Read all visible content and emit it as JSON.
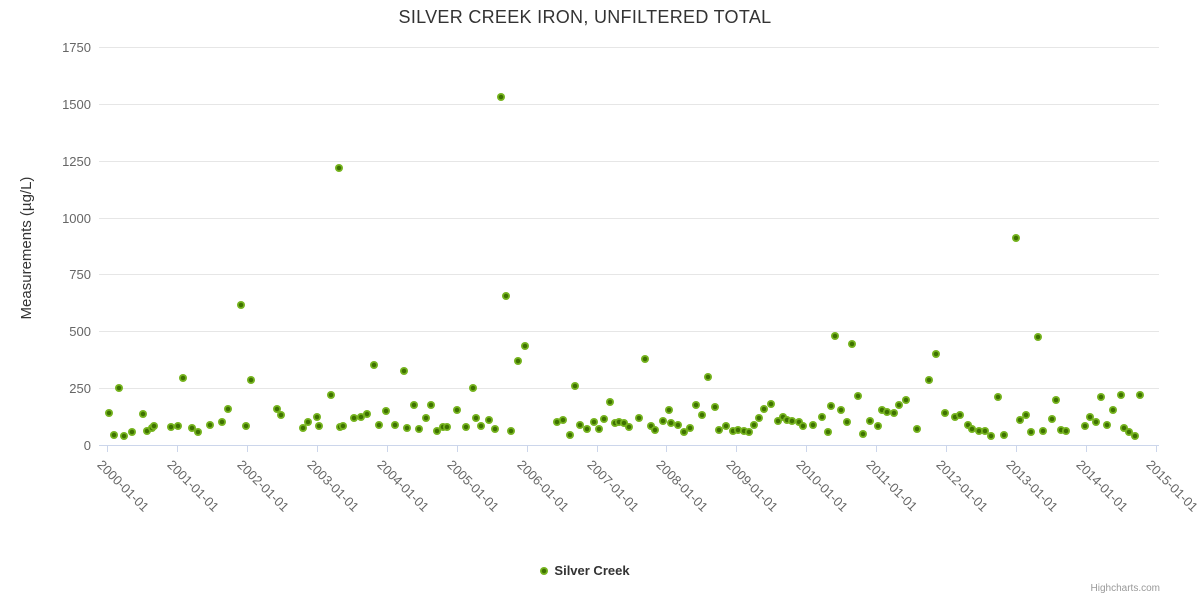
{
  "title": "SILVER CREEK IRON, UNFILTERED TOTAL",
  "y_axis": {
    "title": "Measurements (µg/L)",
    "tick_labels": [
      "0",
      "250",
      "500",
      "750",
      "1000",
      "1250",
      "1500",
      "1750"
    ]
  },
  "x_axis": {
    "tick_labels": [
      "2000-01-01",
      "2001-01-01",
      "2002-01-01",
      "2003-01-01",
      "2004-01-01",
      "2005-01-01",
      "2006-01-01",
      "2007-01-01",
      "2008-01-01",
      "2009-01-01",
      "2010-01-01",
      "2011-01-01",
      "2012-01-01",
      "2013-01-01",
      "2014-01-01",
      "2015-01-01"
    ]
  },
  "legend": {
    "label": "Silver Creek"
  },
  "credits": "Highcharts.com",
  "colors": {
    "marker_outer": "#76b41f",
    "marker_inner": "#3e7200",
    "grid": "#e6e6e6",
    "axis_line": "#ccd6eb",
    "title_text": "#333333",
    "label_text": "#666666",
    "credits_text": "#999999"
  },
  "chart_data": {
    "type": "scatter",
    "title": "SILVER CREEK IRON, UNFILTERED TOTAL",
    "xlabel": "",
    "ylabel": "Measurements (µg/L)",
    "ylim": [
      0,
      1750
    ],
    "y_ticks": [
      0,
      250,
      500,
      750,
      1000,
      1250,
      1500,
      1750
    ],
    "xlim": [
      "2000-01-01",
      "2015-01-01"
    ],
    "grid": true,
    "legend_position": "bottom-center",
    "series": [
      {
        "name": "Silver Creek",
        "color": "#76b41f",
        "points": [
          [
            "2000-01-11",
            140
          ],
          [
            "2000-02-07",
            45
          ],
          [
            "2000-03-05",
            250
          ],
          [
            "2000-03-27",
            40
          ],
          [
            "2000-05-10",
            55
          ],
          [
            "2000-07-04",
            135
          ],
          [
            "2000-07-26",
            60
          ],
          [
            "2000-08-25",
            75
          ],
          [
            "2000-09-05",
            85
          ],
          [
            "2000-12-02",
            80
          ],
          [
            "2001-01-04",
            85
          ],
          [
            "2001-02-03",
            295
          ],
          [
            "2001-03-20",
            75
          ],
          [
            "2001-04-22",
            55
          ],
          [
            "2001-06-23",
            90
          ],
          [
            "2001-08-25",
            100
          ],
          [
            "2001-09-23",
            160
          ],
          [
            "2001-12-02",
            615
          ],
          [
            "2001-12-27",
            85
          ],
          [
            "2002-01-22",
            285
          ],
          [
            "2002-06-05",
            160
          ],
          [
            "2002-06-27",
            130
          ],
          [
            "2002-10-22",
            75
          ],
          [
            "2002-11-17",
            100
          ],
          [
            "2003-01-01",
            125
          ],
          [
            "2003-01-11",
            85
          ],
          [
            "2003-03-16",
            220
          ],
          [
            "2003-04-26",
            1220
          ],
          [
            "2003-05-03",
            80
          ],
          [
            "2003-05-17",
            85
          ],
          [
            "2003-07-15",
            120
          ],
          [
            "2003-08-21",
            125
          ],
          [
            "2003-09-20",
            135
          ],
          [
            "2003-10-26",
            350
          ],
          [
            "2003-11-21",
            90
          ],
          [
            "2003-12-27",
            150
          ],
          [
            "2004-02-14",
            90
          ],
          [
            "2004-04-01",
            325
          ],
          [
            "2004-04-15",
            75
          ],
          [
            "2004-05-21",
            175
          ],
          [
            "2004-06-16",
            70
          ],
          [
            "2004-07-22",
            120
          ],
          [
            "2004-08-17",
            175
          ],
          [
            "2004-09-20",
            60
          ],
          [
            "2004-10-19",
            80
          ],
          [
            "2004-11-14",
            80
          ],
          [
            "2005-01-01",
            155
          ],
          [
            "2005-02-17",
            80
          ],
          [
            "2005-03-23",
            250
          ],
          [
            "2005-04-11",
            120
          ],
          [
            "2005-05-07",
            85
          ],
          [
            "2005-06-20",
            110
          ],
          [
            "2005-07-19",
            70
          ],
          [
            "2005-08-17",
            1530
          ],
          [
            "2005-09-16",
            655
          ],
          [
            "2005-10-11",
            60
          ],
          [
            "2005-11-17",
            370
          ],
          [
            "2005-12-23",
            435
          ],
          [
            "2006-06-05",
            100
          ],
          [
            "2006-07-11",
            110
          ],
          [
            "2006-08-14",
            45
          ],
          [
            "2006-09-09",
            260
          ],
          [
            "2006-10-04",
            90
          ],
          [
            "2006-11-10",
            70
          ],
          [
            "2006-12-16",
            100
          ],
          [
            "2007-01-15",
            70
          ],
          [
            "2007-02-07",
            115
          ],
          [
            "2007-03-13",
            190
          ],
          [
            "2007-04-08",
            95
          ],
          [
            "2007-04-29",
            100
          ],
          [
            "2007-05-25",
            95
          ],
          [
            "2007-06-20",
            80
          ],
          [
            "2007-08-10",
            120
          ],
          [
            "2007-09-13",
            380
          ],
          [
            "2007-10-11",
            85
          ],
          [
            "2007-11-03",
            65
          ],
          [
            "2007-12-13",
            105
          ],
          [
            "2008-01-15",
            155
          ],
          [
            "2008-01-26",
            95
          ],
          [
            "2008-03-02",
            90
          ],
          [
            "2008-04-01",
            55
          ],
          [
            "2008-05-03",
            75
          ],
          [
            "2008-06-02",
            175
          ],
          [
            "2008-07-04",
            130
          ],
          [
            "2008-08-03",
            300
          ],
          [
            "2008-09-09",
            165
          ],
          [
            "2008-10-01",
            65
          ],
          [
            "2008-11-07",
            85
          ],
          [
            "2008-12-13",
            60
          ],
          [
            "2009-01-08",
            65
          ],
          [
            "2009-02-11",
            60
          ],
          [
            "2009-03-05",
            55
          ],
          [
            "2009-04-04",
            90
          ],
          [
            "2009-04-29",
            120
          ],
          [
            "2009-05-25",
            160
          ],
          [
            "2009-07-01",
            180
          ],
          [
            "2009-08-03",
            105
          ],
          [
            "2009-09-02",
            125
          ],
          [
            "2009-09-23",
            110
          ],
          [
            "2009-10-19",
            105
          ],
          [
            "2009-11-21",
            100
          ],
          [
            "2009-12-16",
            85
          ],
          [
            "2010-02-03",
            90
          ],
          [
            "2010-03-23",
            125
          ],
          [
            "2010-04-22",
            55
          ],
          [
            "2010-05-10",
            170
          ],
          [
            "2010-05-28",
            480
          ],
          [
            "2010-07-01",
            155
          ],
          [
            "2010-07-29",
            100
          ],
          [
            "2010-08-25",
            445
          ],
          [
            "2010-09-27",
            215
          ],
          [
            "2010-10-22",
            50
          ],
          [
            "2010-11-28",
            105
          ],
          [
            "2011-01-08",
            85
          ],
          [
            "2011-01-29",
            155
          ],
          [
            "2011-02-25",
            145
          ],
          [
            "2011-04-01",
            140
          ],
          [
            "2011-04-26",
            175
          ],
          [
            "2011-06-02",
            200
          ],
          [
            "2011-08-03",
            70
          ],
          [
            "2011-10-01",
            285
          ],
          [
            "2011-11-07",
            400
          ],
          [
            "2011-12-27",
            140
          ],
          [
            "2012-02-14",
            125
          ],
          [
            "2012-03-13",
            130
          ],
          [
            "2012-04-22",
            90
          ],
          [
            "2012-05-14",
            70
          ],
          [
            "2012-06-20",
            60
          ],
          [
            "2012-07-22",
            60
          ],
          [
            "2012-08-21",
            40
          ],
          [
            "2012-09-27",
            210
          ],
          [
            "2012-10-29",
            45
          ],
          [
            "2013-01-01",
            910
          ],
          [
            "2013-01-19",
            110
          ],
          [
            "2013-02-21",
            130
          ],
          [
            "2013-03-16",
            55
          ],
          [
            "2013-04-26",
            475
          ],
          [
            "2013-05-17",
            60
          ],
          [
            "2013-07-04",
            115
          ],
          [
            "2013-07-29",
            200
          ],
          [
            "2013-08-21",
            65
          ],
          [
            "2013-09-20",
            60
          ],
          [
            "2013-12-27",
            85
          ],
          [
            "2014-01-22",
            125
          ],
          [
            "2014-02-25",
            100
          ],
          [
            "2014-03-20",
            210
          ],
          [
            "2014-04-19",
            90
          ],
          [
            "2014-05-21",
            155
          ],
          [
            "2014-07-01",
            220
          ],
          [
            "2014-07-15",
            75
          ],
          [
            "2014-08-10",
            55
          ],
          [
            "2014-09-13",
            40
          ],
          [
            "2014-10-11",
            220
          ]
        ]
      }
    ]
  }
}
